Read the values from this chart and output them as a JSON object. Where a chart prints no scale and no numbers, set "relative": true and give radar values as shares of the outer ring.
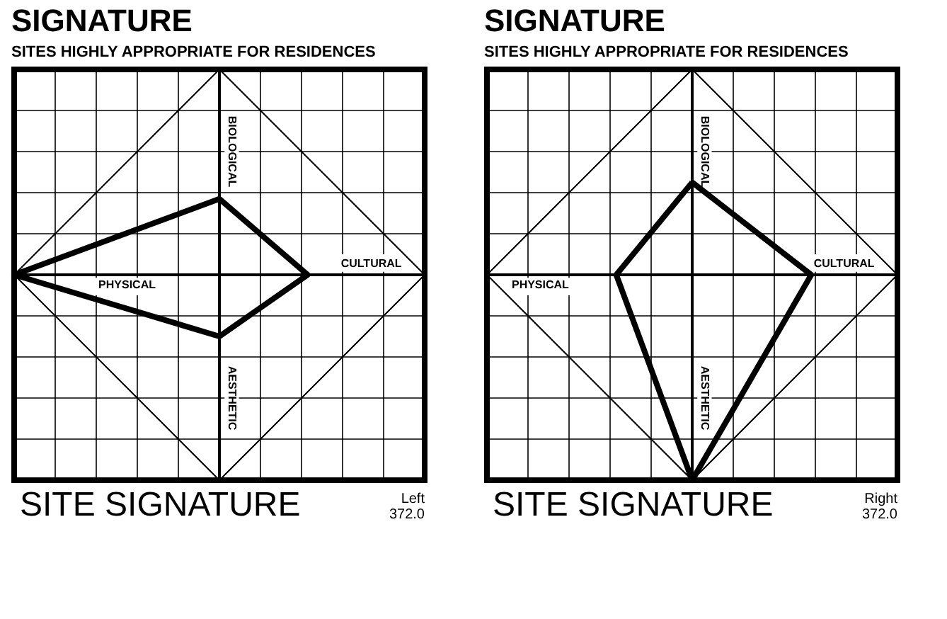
{
  "chart_data": [
    {
      "type": "radar",
      "title": "SIGNATURE",
      "subtitle": "SITES HIGHLY APPROPRIATE FOR RESIDENCES",
      "categories": [
        "BIOLOGICAL",
        "CULTURAL",
        "AESTHETIC",
        "PHYSICAL"
      ],
      "relative": true,
      "grid": true,
      "marker": "none",
      "series": [
        {
          "color": "#000000",
          "values": [
            0.37,
            0.43,
            0.3,
            1.0
          ]
        }
      ],
      "annotations": [
        "SITE SIGNATURE",
        "Left",
        "372.0"
      ]
    },
    {
      "type": "radar",
      "title": "SIGNATURE",
      "subtitle": "SITES HIGHLY APPROPRIATE FOR RESIDENCES",
      "categories": [
        "BIOLOGICAL",
        "CULTURAL",
        "AESTHETIC",
        "PHYSICAL"
      ],
      "relative": true,
      "grid": true,
      "marker": "none",
      "series": [
        {
          "color": "#000000",
          "values": [
            0.45,
            0.58,
            1.0,
            0.37
          ]
        }
      ],
      "annotations": [
        "SITE SIGNATURE",
        "Right",
        "372.0"
      ]
    }
  ]
}
